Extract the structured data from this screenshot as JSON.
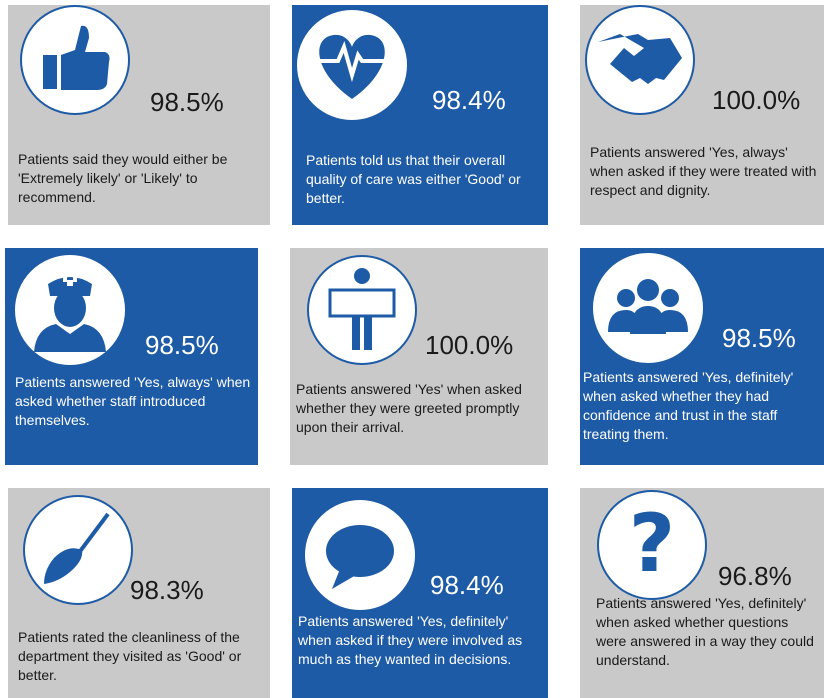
{
  "tiles": [
    {
      "percent": "98.5%",
      "text": "Patients said they would either be 'Extremely likely' or 'Likely' to recommend."
    },
    {
      "percent": "98.4%",
      "text": "Patients told us that their overall quality of care was either 'Good' or better."
    },
    {
      "percent": "100.0%",
      "text": "Patients answered 'Yes, always' when asked if they were treated with respect and dignity."
    },
    {
      "percent": "98.5%",
      "text": "Patients answered 'Yes, always' when asked whether staff introduced themselves."
    },
    {
      "percent": "100.0%",
      "text": "Patients answered 'Yes' when asked whether they were greeted promptly upon their arrival."
    },
    {
      "percent": "98.5%",
      "text": "Patients answered 'Yes, definitely' when asked whether they had confidence and trust in the staff treating them."
    },
    {
      "percent": "98.3%",
      "text": "Patients rated the cleanliness of the department they visited as 'Good' or better."
    },
    {
      "percent": "98.4%",
      "text": "Patients answered 'Yes, definitely' when asked if they were involved as much as they wanted in decisions."
    },
    {
      "percent": "96.8%",
      "text": "Patients answered 'Yes, definitely' when asked whether questions were answered in a way they could understand."
    }
  ]
}
